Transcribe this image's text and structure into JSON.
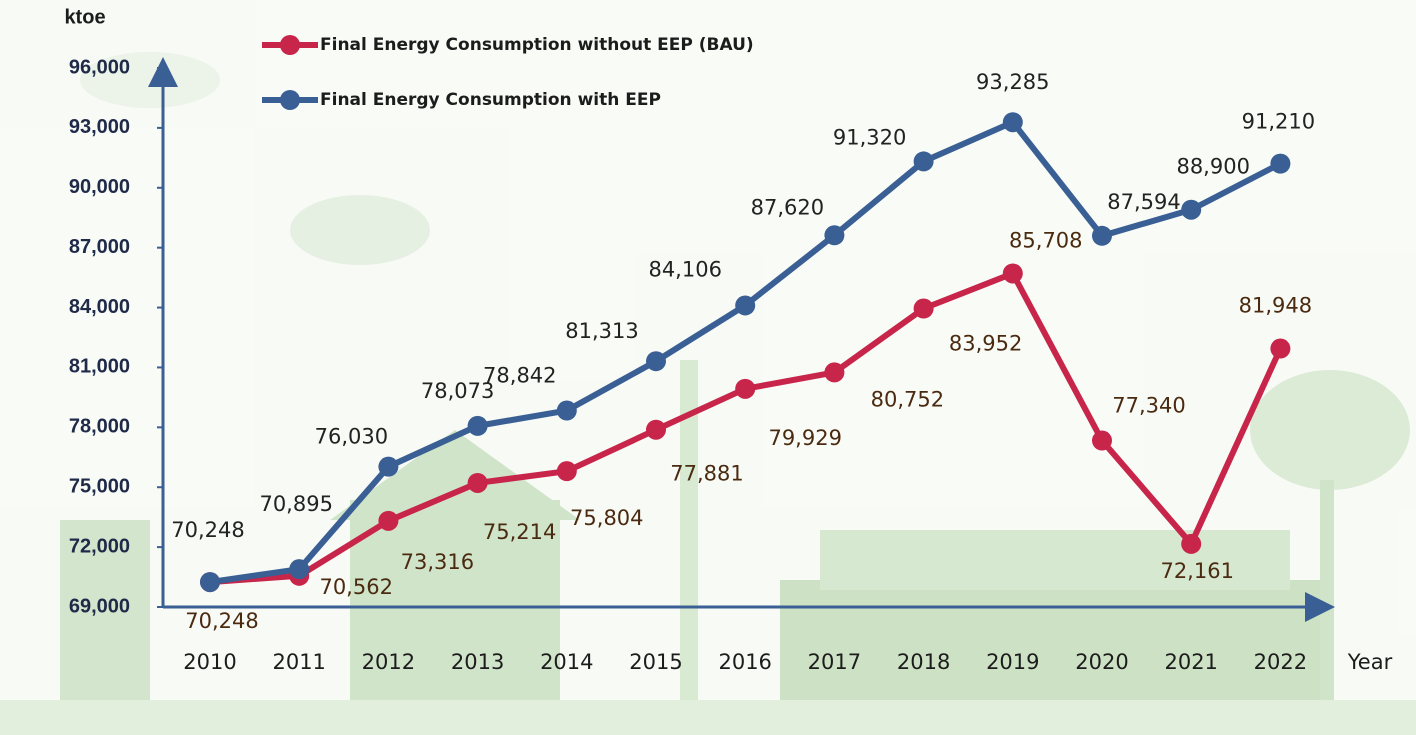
{
  "chart_data": {
    "type": "line",
    "y_axis_label": "ktoe",
    "x_axis_label": "Year",
    "categories": [
      "2010",
      "2011",
      "2012",
      "2013",
      "2014",
      "2015",
      "2016",
      "2017",
      "2018",
      "2019",
      "2020",
      "2021",
      "2022"
    ],
    "series": [
      {
        "name": "Final Energy Consumption without EEP (BAU)",
        "color": "#c8254b",
        "values": [
          70248,
          70562,
          73316,
          75214,
          75804,
          77881,
          79929,
          80752,
          83952,
          85708,
          77340,
          72161,
          81948
        ],
        "value_labels": [
          "70,248",
          "70,562",
          "73,316",
          "75,214",
          "75,804",
          "77,881",
          "79,929",
          "80,752",
          "83,952",
          "85,708",
          "77,340",
          "72,161",
          "81,948"
        ]
      },
      {
        "name": "Final Energy Consumption with EEP",
        "color": "#3a5f94",
        "values": [
          70248,
          70895,
          76030,
          78073,
          78842,
          81313,
          84106,
          87620,
          91320,
          93285,
          87594,
          88900,
          91210
        ],
        "value_labels": [
          "70,248",
          "70,895",
          "76,030",
          "78,073",
          "78,842",
          "81,313",
          "84,106",
          "87,620",
          "91,320",
          "93,285",
          "87,594",
          "88,900",
          "91,210"
        ]
      }
    ],
    "ylim": [
      69000,
      96000
    ],
    "yticks": [
      {
        "value": 69000,
        "label": "69,000"
      },
      {
        "value": 72000,
        "label": "72,000"
      },
      {
        "value": 75000,
        "label": "75,000"
      },
      {
        "value": 78000,
        "label": "78,000"
      },
      {
        "value": 81000,
        "label": "81,000"
      },
      {
        "value": 84000,
        "label": "84,000"
      },
      {
        "value": 87000,
        "label": "87,000"
      },
      {
        "value": 90000,
        "label": "90,000"
      },
      {
        "value": 93000,
        "label": "93,000"
      },
      {
        "value": 96000,
        "label": "96,000"
      }
    ],
    "grid": false
  }
}
